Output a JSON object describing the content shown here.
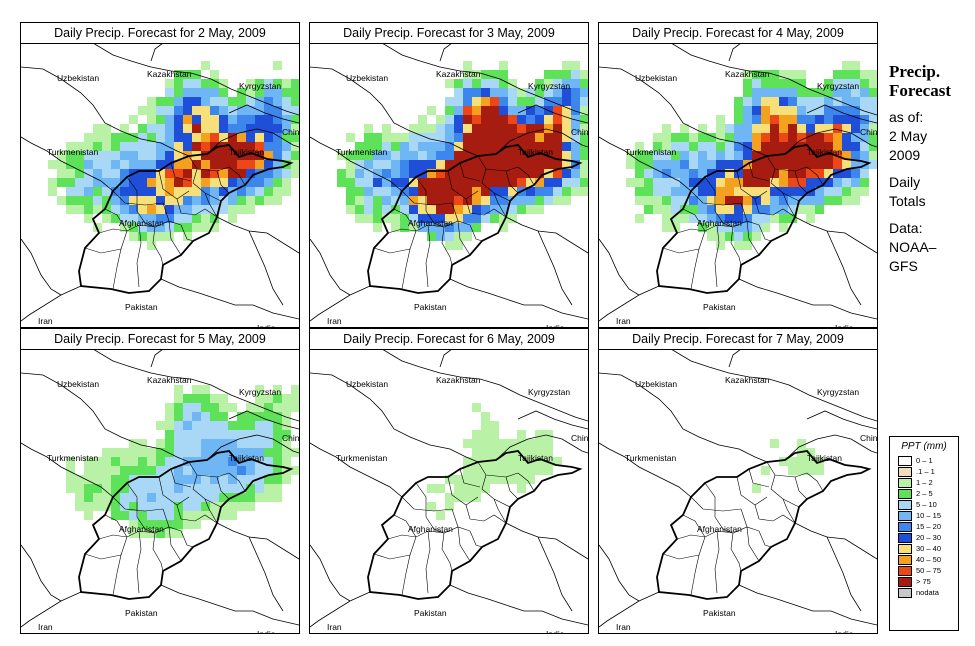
{
  "panels": [
    {
      "title": "Daily Precip. Forecast for  2 May, 2009",
      "intensity": 0.55,
      "seed": 11
    },
    {
      "title": "Daily Precip. Forecast for  3 May, 2009",
      "intensity": 0.7,
      "seed": 23
    },
    {
      "title": "Daily Precip. Forecast for  4 May, 2009",
      "intensity": 0.6,
      "seed": 37
    },
    {
      "title": "Daily Precip. Forecast for  5 May, 2009",
      "intensity": 0.3,
      "seed": 41
    },
    {
      "title": "Daily Precip. Forecast for  6 May, 2009",
      "intensity": 0.12,
      "seed": 53
    },
    {
      "title": "Daily Precip. Forecast for  7 May, 2009",
      "intensity": 0.1,
      "seed": 67
    }
  ],
  "country_labels": [
    "Uzbekistan",
    "Kazakhstan",
    "Kyrgyzstan",
    "Turkmenistan",
    "Tajikistan",
    "China",
    "Afghanistan",
    "Iran",
    "Pakistan",
    "India"
  ],
  "side": {
    "heading_line1": "Precip.",
    "heading_line2": "Forecast",
    "asof_label": "as of:",
    "asof_line1": "2 May",
    "asof_line2": "2009",
    "totals_line1": "Daily",
    "totals_line2": "Totals",
    "data_line1": "Data:",
    "data_line2": "NOAA–",
    "data_line3": "GFS"
  },
  "legend": {
    "title": "PPT (mm)",
    "items": [
      {
        "label": "0 – 1",
        "color": "#ffffff"
      },
      {
        "label": ".1 – 1",
        "color": "#f3dcc0"
      },
      {
        "label": "1 – 2",
        "color": "#b9f2a6"
      },
      {
        "label": "2 – 5",
        "color": "#5ee25a"
      },
      {
        "label": "5 – 10",
        "color": "#a9d8f7"
      },
      {
        "label": "10 – 15",
        "color": "#6fb6f5"
      },
      {
        "label": "15 – 20",
        "color": "#3c86ec"
      },
      {
        "label": "20 – 30",
        "color": "#1f4fd9"
      },
      {
        "label": "30 – 40",
        "color": "#f7e07a"
      },
      {
        "label": "40 – 50",
        "color": "#f4a11f"
      },
      {
        "label": "50 – 75",
        "color": "#ee4717"
      },
      {
        "label": "> 75",
        "color": "#a61c11"
      },
      {
        "label": "nodata",
        "color": "#c8c8c8"
      }
    ]
  }
}
